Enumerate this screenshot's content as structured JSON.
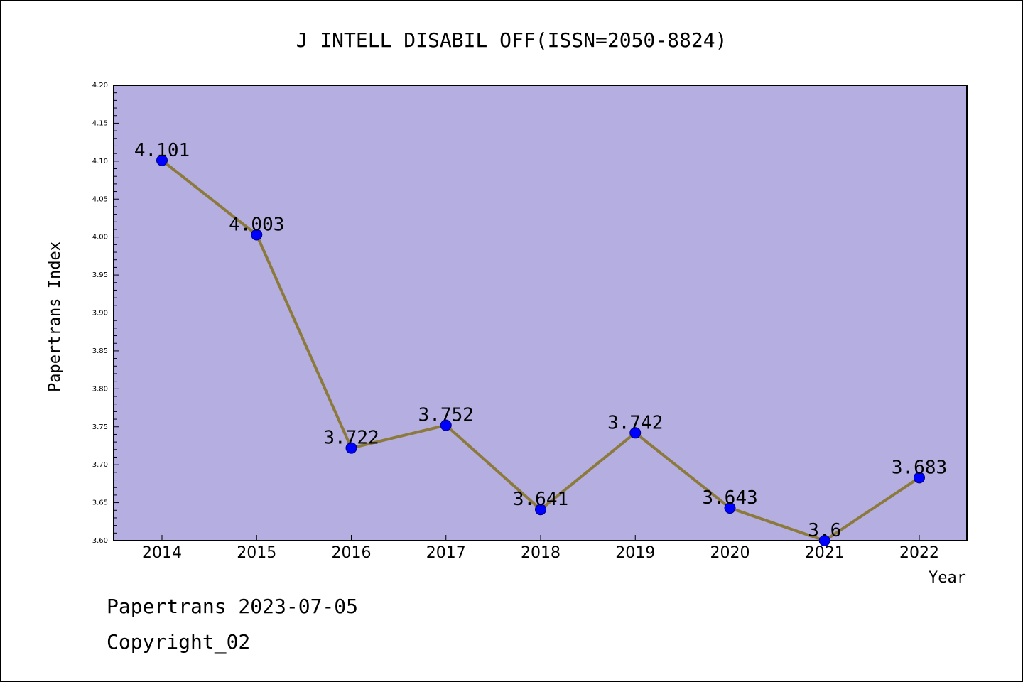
{
  "colors": {
    "plot_background": "#b4aee1",
    "line": "#8c7a3c",
    "marker_fill": "#0000ff",
    "marker_stroke": "#000080"
  },
  "chart_data": {
    "type": "line",
    "title": "J INTELL DISABIL OFF(ISSN=2050-8824)",
    "xlabel": "Year",
    "ylabel": "Papertrans Index",
    "categories": [
      "2014",
      "2015",
      "2016",
      "2017",
      "2018",
      "2019",
      "2020",
      "2021",
      "2022"
    ],
    "values": [
      4.101,
      4.003,
      3.722,
      3.752,
      3.641,
      3.742,
      3.643,
      3.6,
      3.683
    ],
    "data_labels": [
      "4.101",
      "4.003",
      "3.722",
      "3.752",
      "3.641",
      "3.742",
      "3.643",
      "3.6",
      "3.683"
    ],
    "ylim": [
      3.6,
      4.2
    ],
    "yticks": [
      "3.60",
      "3.65",
      "3.70",
      "3.75",
      "3.80",
      "3.85",
      "3.90",
      "3.95",
      "4.00",
      "4.05",
      "4.10",
      "4.15",
      "4.20"
    ],
    "grid": false
  },
  "footer": {
    "line1": "Papertrans 2023-07-05",
    "line2": "Copyright_02"
  }
}
